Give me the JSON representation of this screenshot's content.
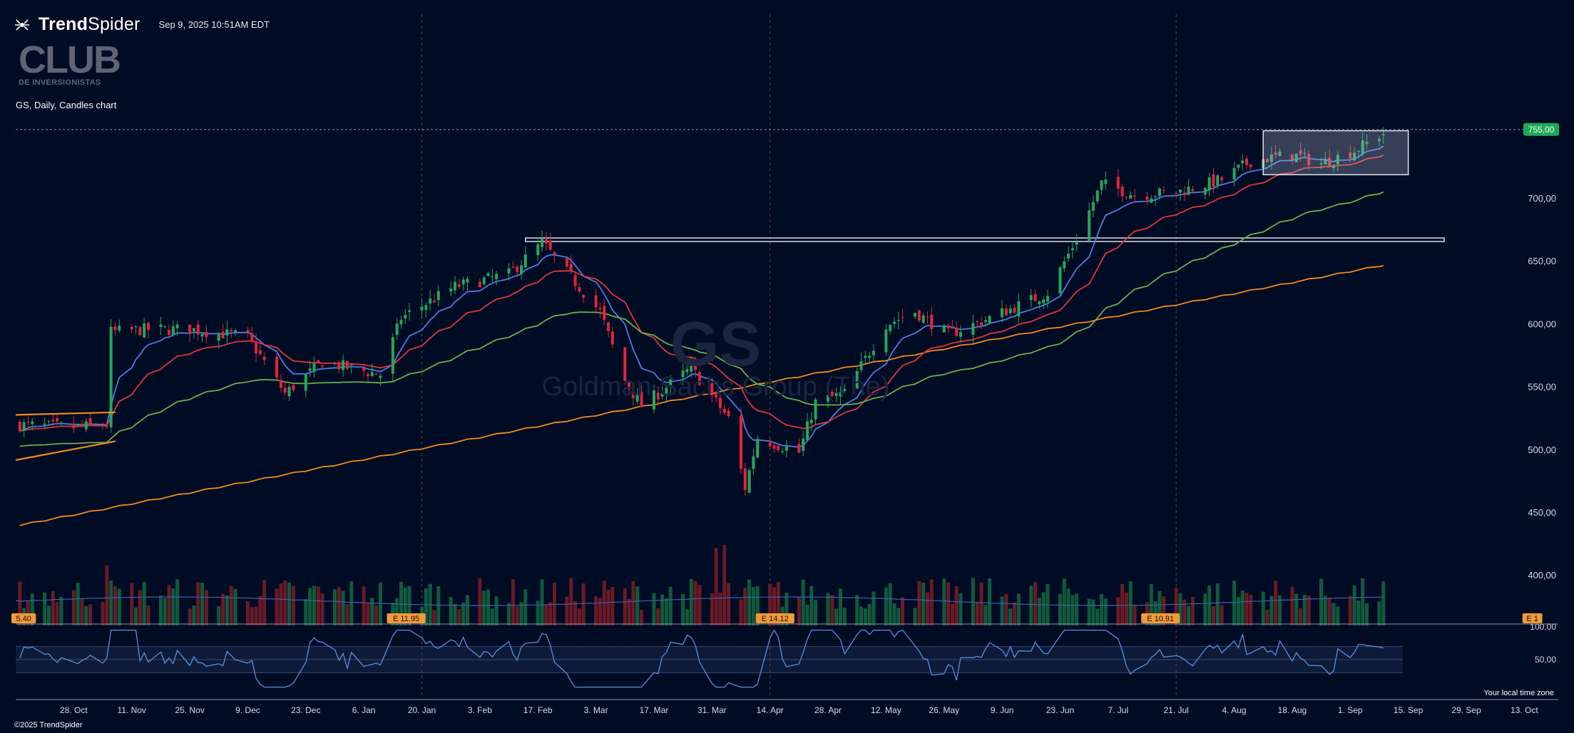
{
  "header": {
    "brand_strong": "Trend",
    "brand_light": "Spider",
    "timestamp": "Sep 9, 2025 10:51AM EDT",
    "logo_icon": "trendspider-spider-icon"
  },
  "watermark": {
    "club_big": "CLUB",
    "club_small": "DE INVERSIONISTAS",
    "ticker": "GS",
    "company": "Goldman Sachs Group (The)"
  },
  "symbol_label": "GS, Daily, Candles chart",
  "footer": {
    "copyright": "©2025 TrendSpider",
    "timezone": "Your local time zone"
  },
  "colors": {
    "background": "#000b24",
    "up": "#26a65b",
    "down": "#e0243e",
    "ema_fast": "#4a7ee0",
    "ema_mid": "#e0343a",
    "sma_50": "#6ab04c",
    "sma_200": "#f08a1c",
    "price_badge": "#1fa855",
    "earnings_badge": "#f09a3a"
  },
  "chart_data": {
    "type": "candlestick",
    "ticker": "GS",
    "interval": "Daily",
    "last_price_label": "755,00",
    "y_ticks": [
      "400,00",
      "450,00",
      "500,00",
      "550,00",
      "600,00",
      "650,00",
      "700,00"
    ],
    "ylim": [
      365,
      790
    ],
    "x_ticks": [
      "28. Oct",
      "11. Nov",
      "25. Nov",
      "9. Dec",
      "23. Dec",
      "6. Jan",
      "20. Jan",
      "3. Feb",
      "17. Feb",
      "3. Mar",
      "17. Mar",
      "31. Mar",
      "14. Apr",
      "28. Apr",
      "12. May",
      "26. May",
      "9. Jun",
      "23. Jun",
      "7. Jul",
      "21. Jul",
      "4. Aug",
      "18. Aug",
      "1. Sep",
      "15. Sep",
      "29. Sep",
      "13. Oct"
    ],
    "earnings": [
      {
        "label": "5.40"
      },
      {
        "label": "E 11.95"
      },
      {
        "label": "E 14.12"
      },
      {
        "label": "E 10.91"
      },
      {
        "label": "E 1"
      }
    ],
    "rsi": {
      "ticks": [
        "100,00",
        "50,00"
      ],
      "upper": 70,
      "lower": 30,
      "last": 62
    },
    "resistance_level": 667,
    "price_path": [
      {
        "date": "2024-10-15",
        "close": 520
      },
      {
        "date": "2024-10-28",
        "close": 518
      },
      {
        "date": "2024-11-05",
        "close": 520
      },
      {
        "date": "2024-11-06",
        "close": 594
      },
      {
        "date": "2024-11-15",
        "close": 596
      },
      {
        "date": "2024-11-25",
        "close": 596
      },
      {
        "date": "2024-12-09",
        "close": 590
      },
      {
        "date": "2024-12-18",
        "close": 545
      },
      {
        "date": "2024-12-27",
        "close": 570
      },
      {
        "date": "2025-01-10",
        "close": 560
      },
      {
        "date": "2025-01-15",
        "close": 605
      },
      {
        "date": "2025-01-28",
        "close": 630
      },
      {
        "date": "2025-02-10",
        "close": 640
      },
      {
        "date": "2025-02-18",
        "close": 665
      },
      {
        "date": "2025-03-04",
        "close": 610
      },
      {
        "date": "2025-03-10",
        "close": 555
      },
      {
        "date": "2025-03-14",
        "close": 535
      },
      {
        "date": "2025-03-20",
        "close": 550
      },
      {
        "date": "2025-03-26",
        "close": 565
      },
      {
        "date": "2025-04-04",
        "close": 525
      },
      {
        "date": "2025-04-08",
        "close": 470
      },
      {
        "date": "2025-04-11",
        "close": 510
      },
      {
        "date": "2025-04-21",
        "close": 498
      },
      {
        "date": "2025-04-25",
        "close": 538
      },
      {
        "date": "2025-05-02",
        "close": 545
      },
      {
        "date": "2025-05-12",
        "close": 600
      },
      {
        "date": "2025-05-19",
        "close": 610
      },
      {
        "date": "2025-05-27",
        "close": 592
      },
      {
        "date": "2025-06-06",
        "close": 605
      },
      {
        "date": "2025-06-20",
        "close": 625
      },
      {
        "date": "2025-06-27",
        "close": 668
      },
      {
        "date": "2025-07-03",
        "close": 712
      },
      {
        "date": "2025-07-11",
        "close": 703
      },
      {
        "date": "2025-07-21",
        "close": 705
      },
      {
        "date": "2025-08-01",
        "close": 715
      },
      {
        "date": "2025-08-08",
        "close": 730
      },
      {
        "date": "2025-08-18",
        "close": 735
      },
      {
        "date": "2025-08-25",
        "close": 728
      },
      {
        "date": "2025-09-02",
        "close": 738
      },
      {
        "date": "2025-09-09",
        "close": 752
      }
    ]
  }
}
